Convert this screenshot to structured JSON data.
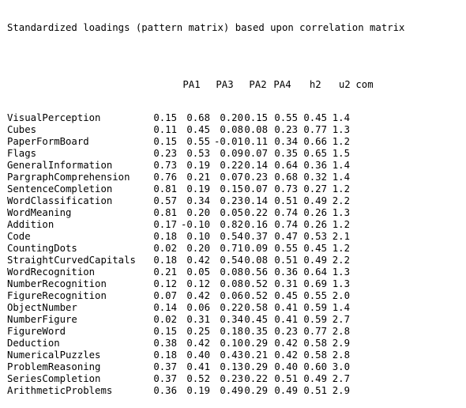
{
  "title": "Standardized loadings (pattern matrix) based upon correlation matrix",
  "headers": [
    "",
    "PA1",
    "PA3",
    "PA2",
    "PA4",
    "h2",
    "u2",
    "com"
  ],
  "rows": [
    {
      "name": "VisualPerception",
      "PA1": "0.15",
      "PA3": "0.68",
      "PA2": "0.20",
      "PA4": "0.15",
      "h2": "0.55",
      "u2": "0.45",
      "com": "1.4"
    },
    {
      "name": "Cubes",
      "PA1": "0.11",
      "PA3": "0.45",
      "PA2": "0.08",
      "PA4": "0.08",
      "h2": "0.23",
      "u2": "0.77",
      "com": "1.3"
    },
    {
      "name": "PaperFormBoard",
      "PA1": "0.15",
      "PA3": "0.55",
      "PA2": "-0.01",
      "PA4": "0.11",
      "h2": "0.34",
      "u2": "0.66",
      "com": "1.2"
    },
    {
      "name": "Flags",
      "PA1": "0.23",
      "PA3": "0.53",
      "PA2": "0.09",
      "PA4": "0.07",
      "h2": "0.35",
      "u2": "0.65",
      "com": "1.5"
    },
    {
      "name": "GeneralInformation",
      "PA1": "0.73",
      "PA3": "0.19",
      "PA2": "0.22",
      "PA4": "0.14",
      "h2": "0.64",
      "u2": "0.36",
      "com": "1.4"
    },
    {
      "name": "PargraphComprehension",
      "PA1": "0.76",
      "PA3": "0.21",
      "PA2": "0.07",
      "PA4": "0.23",
      "h2": "0.68",
      "u2": "0.32",
      "com": "1.4"
    },
    {
      "name": "SentenceCompletion",
      "PA1": "0.81",
      "PA3": "0.19",
      "PA2": "0.15",
      "PA4": "0.07",
      "h2": "0.73",
      "u2": "0.27",
      "com": "1.2"
    },
    {
      "name": "WordClassification",
      "PA1": "0.57",
      "PA3": "0.34",
      "PA2": "0.23",
      "PA4": "0.14",
      "h2": "0.51",
      "u2": "0.49",
      "com": "2.2"
    },
    {
      "name": "WordMeaning",
      "PA1": "0.81",
      "PA3": "0.20",
      "PA2": "0.05",
      "PA4": "0.22",
      "h2": "0.74",
      "u2": "0.26",
      "com": "1.3"
    },
    {
      "name": "Addition",
      "PA1": "0.17",
      "PA3": "-0.10",
      "PA2": "0.82",
      "PA4": "0.16",
      "h2": "0.74",
      "u2": "0.26",
      "com": "1.2"
    },
    {
      "name": "Code",
      "PA1": "0.18",
      "PA3": "0.10",
      "PA2": "0.54",
      "PA4": "0.37",
      "h2": "0.47",
      "u2": "0.53",
      "com": "2.1"
    },
    {
      "name": "CountingDots",
      "PA1": "0.02",
      "PA3": "0.20",
      "PA2": "0.71",
      "PA4": "0.09",
      "h2": "0.55",
      "u2": "0.45",
      "com": "1.2"
    },
    {
      "name": "StraightCurvedCapitals",
      "PA1": "0.18",
      "PA3": "0.42",
      "PA2": "0.54",
      "PA4": "0.08",
      "h2": "0.51",
      "u2": "0.49",
      "com": "2.2"
    },
    {
      "name": "WordRecognition",
      "PA1": "0.21",
      "PA3": "0.05",
      "PA2": "0.08",
      "PA4": "0.56",
      "h2": "0.36",
      "u2": "0.64",
      "com": "1.3"
    },
    {
      "name": "NumberRecognition",
      "PA1": "0.12",
      "PA3": "0.12",
      "PA2": "0.08",
      "PA4": "0.52",
      "h2": "0.31",
      "u2": "0.69",
      "com": "1.3"
    },
    {
      "name": "FigureRecognition",
      "PA1": "0.07",
      "PA3": "0.42",
      "PA2": "0.06",
      "PA4": "0.52",
      "h2": "0.45",
      "u2": "0.55",
      "com": "2.0"
    },
    {
      "name": "ObjectNumber",
      "PA1": "0.14",
      "PA3": "0.06",
      "PA2": "0.22",
      "PA4": "0.58",
      "h2": "0.41",
      "u2": "0.59",
      "com": "1.4"
    },
    {
      "name": "NumberFigure",
      "PA1": "0.02",
      "PA3": "0.31",
      "PA2": "0.34",
      "PA4": "0.45",
      "h2": "0.41",
      "u2": "0.59",
      "com": "2.7"
    },
    {
      "name": "FigureWord",
      "PA1": "0.15",
      "PA3": "0.25",
      "PA2": "0.18",
      "PA4": "0.35",
      "h2": "0.23",
      "u2": "0.77",
      "com": "2.8"
    },
    {
      "name": "Deduction",
      "PA1": "0.38",
      "PA3": "0.42",
      "PA2": "0.10",
      "PA4": "0.29",
      "h2": "0.42",
      "u2": "0.58",
      "com": "2.9"
    },
    {
      "name": "NumericalPuzzles",
      "PA1": "0.18",
      "PA3": "0.40",
      "PA2": "0.43",
      "PA4": "0.21",
      "h2": "0.42",
      "u2": "0.58",
      "com": "2.8"
    },
    {
      "name": "ProblemReasoning",
      "PA1": "0.37",
      "PA3": "0.41",
      "PA2": "0.13",
      "PA4": "0.29",
      "h2": "0.40",
      "u2": "0.60",
      "com": "3.0"
    },
    {
      "name": "SeriesCompletion",
      "PA1": "0.37",
      "PA3": "0.52",
      "PA2": "0.23",
      "PA4": "0.22",
      "h2": "0.51",
      "u2": "0.49",
      "com": "2.7"
    },
    {
      "name": "ArithmeticProblems",
      "PA1": "0.36",
      "PA3": "0.19",
      "PA2": "0.49",
      "PA4": "0.29",
      "h2": "0.49",
      "u2": "0.51",
      "com": "2.9"
    }
  ]
}
